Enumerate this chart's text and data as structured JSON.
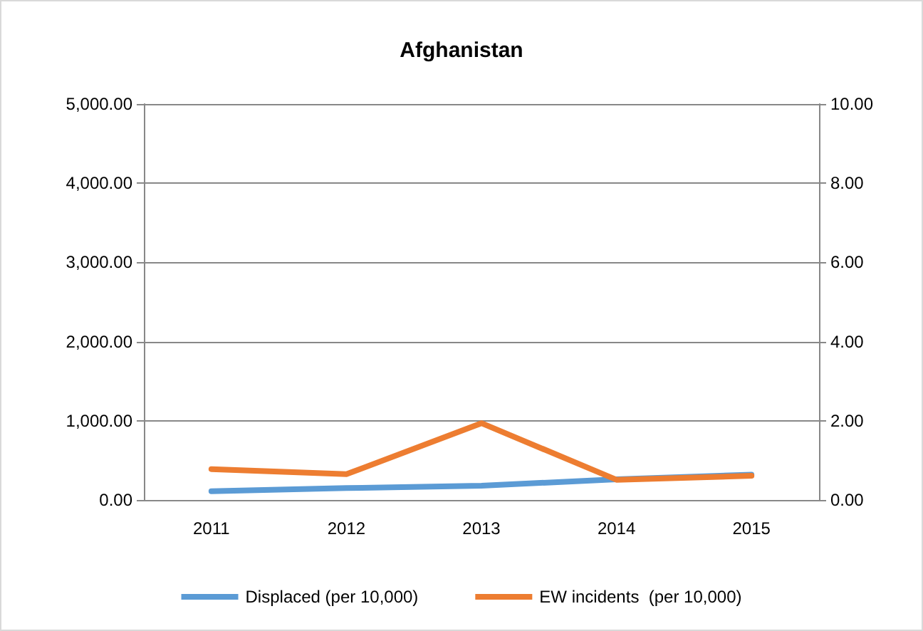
{
  "chart_data": {
    "type": "line",
    "title": "Afghanistan",
    "categories": [
      "2011",
      "2012",
      "2013",
      "2014",
      "2015"
    ],
    "series": [
      {
        "name": "Displaced (per 10,000)",
        "color": "#5b9bd5",
        "values": [
          110,
          150,
          180,
          260,
          320
        ]
      },
      {
        "name": "EW incidents  (per 10,000)",
        "color": "#ed7d31",
        "values": [
          0.78,
          0.65,
          1.94,
          0.51,
          0.61
        ],
        "axis": "y2"
      }
    ],
    "ylim": [
      0,
      5000
    ],
    "yticks": [
      {
        "value": 0,
        "label": "0.00"
      },
      {
        "value": 1000,
        "label": "1,000.00"
      },
      {
        "value": 2000,
        "label": "2,000.00"
      },
      {
        "value": 3000,
        "label": "3,000.00"
      },
      {
        "value": 4000,
        "label": "4,000.00"
      },
      {
        "value": 5000,
        "label": "5,000.00"
      }
    ],
    "y2lim": [
      0,
      10
    ],
    "y2ticks": [
      {
        "value": 0,
        "label": "0.00"
      },
      {
        "value": 2,
        "label": "2.00"
      },
      {
        "value": 4,
        "label": "4.00"
      },
      {
        "value": 6,
        "label": "6.00"
      },
      {
        "value": 8,
        "label": "8.00"
      },
      {
        "value": 10,
        "label": "10.00"
      }
    ],
    "grid": "y",
    "legend": "bottom",
    "marker": "none",
    "line_style": "solid"
  }
}
